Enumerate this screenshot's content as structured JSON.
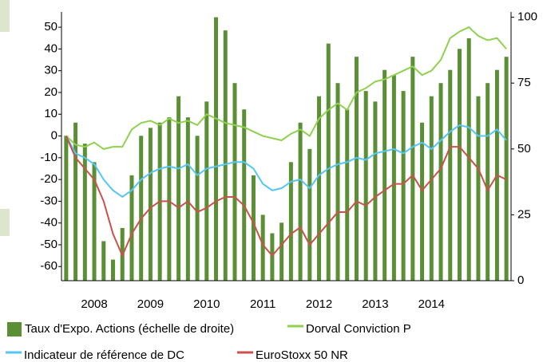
{
  "chart_data": {
    "type": "bar",
    "categories": [
      null,
      null,
      null,
      "2008",
      null,
      null,
      null,
      null,
      null,
      "2009",
      null,
      null,
      null,
      null,
      null,
      "2010",
      null,
      null,
      null,
      null,
      null,
      "2011",
      null,
      null,
      null,
      null,
      null,
      "2012",
      null,
      null,
      null,
      null,
      null,
      "2013",
      null,
      null,
      null,
      null,
      null,
      "2014",
      null,
      null,
      null,
      null,
      null,
      null,
      null,
      null
    ],
    "ylim": [
      -66.5,
      57
    ],
    "yticks": [
      -60,
      -50,
      -40,
      -30,
      -20,
      -10,
      0,
      10,
      20,
      30,
      40,
      50
    ],
    "y2lim": [
      0,
      102
    ],
    "y2ticks": [
      0,
      25,
      50,
      75,
      100
    ],
    "series": [
      {
        "name": "Taux d'Expo. Actions (échelle de droite)",
        "type": "bar",
        "axis": "y2",
        "color": "#5a8f35",
        "values": [
          55,
          60,
          52,
          45,
          15,
          8,
          20,
          40,
          55,
          58,
          60,
          62,
          70,
          62,
          55,
          68,
          100,
          95,
          75,
          65,
          40,
          25,
          18,
          22,
          45,
          60,
          50,
          70,
          90,
          75,
          65,
          85,
          72,
          68,
          80,
          78,
          72,
          85,
          60,
          70,
          75,
          80,
          88,
          92,
          70,
          75,
          80,
          85
        ]
      },
      {
        "name": "Dorval Conviction P",
        "type": "line",
        "color": "#8fd14f",
        "values": [
          0,
          -4,
          -5,
          -3,
          -6,
          -5,
          -5,
          3,
          6,
          7,
          5,
          8,
          6,
          7,
          5,
          10,
          8,
          6,
          5,
          4,
          2,
          0,
          -1,
          -2,
          1,
          3,
          0,
          8,
          12,
          15,
          12,
          20,
          22,
          25,
          26,
          28,
          30,
          32,
          28,
          30,
          35,
          45,
          48,
          50,
          46,
          44,
          45,
          40
        ]
      },
      {
        "name": "Indicateur de référence de DC",
        "type": "line",
        "color": "#55c6f6",
        "values": [
          0,
          -8,
          -10,
          -13,
          -20,
          -25,
          -28,
          -25,
          -20,
          -17,
          -15,
          -14,
          -15,
          -13,
          -18,
          -15,
          -14,
          -13,
          -12,
          -12,
          -15,
          -22,
          -25,
          -24,
          -21,
          -20,
          -24,
          -18,
          -15,
          -13,
          -12,
          -10,
          -11,
          -8,
          -7,
          -6,
          -8,
          -5,
          -3,
          -6,
          -2,
          2,
          5,
          4,
          0,
          0,
          3,
          -2
        ]
      },
      {
        "name": "EuroStoxx 50 NR",
        "type": "line",
        "color": "#c9524c",
        "values": [
          0,
          -10,
          -15,
          -20,
          -30,
          -45,
          -55,
          -45,
          -38,
          -33,
          -30,
          -30,
          -33,
          -30,
          -35,
          -33,
          -30,
          -28,
          -28,
          -32,
          -40,
          -50,
          -55,
          -50,
          -45,
          -42,
          -50,
          -45,
          -40,
          -35,
          -35,
          -30,
          -32,
          -28,
          -25,
          -22,
          -22,
          -18,
          -25,
          -20,
          -15,
          -5,
          -5,
          -10,
          -15,
          -25,
          -18,
          -20
        ]
      }
    ]
  }
}
